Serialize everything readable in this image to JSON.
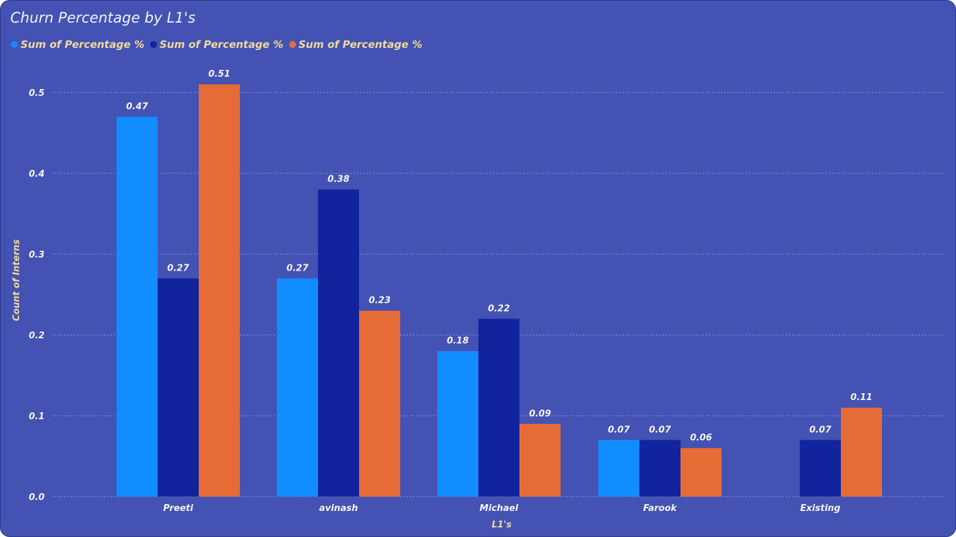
{
  "chart_data": {
    "type": "bar",
    "title": "Churn Percentage by L1's",
    "xlabel": "L1's",
    "ylabel": "Count of Interns",
    "categories": [
      "Preeti",
      "avinash",
      "Michael",
      "Farook",
      "Existing"
    ],
    "series": [
      {
        "name": "Sum of Percentage %",
        "color": "#118DFF",
        "values": [
          0.47,
          0.27,
          0.18,
          0.07,
          null
        ]
      },
      {
        "name": "Sum of Percentage %",
        "color": "#12239E",
        "values": [
          0.27,
          0.38,
          0.22,
          0.07,
          0.07
        ]
      },
      {
        "name": "Sum of Percentage %",
        "color": "#E66C37",
        "values": [
          0.51,
          0.23,
          0.09,
          0.06,
          0.11
        ]
      }
    ],
    "yticks": [
      "0.0",
      "0.1",
      "0.2",
      "0.3",
      "0.4",
      "0.5"
    ],
    "ylim": [
      0,
      0.55
    ],
    "grid": true,
    "legend": "top-left"
  }
}
